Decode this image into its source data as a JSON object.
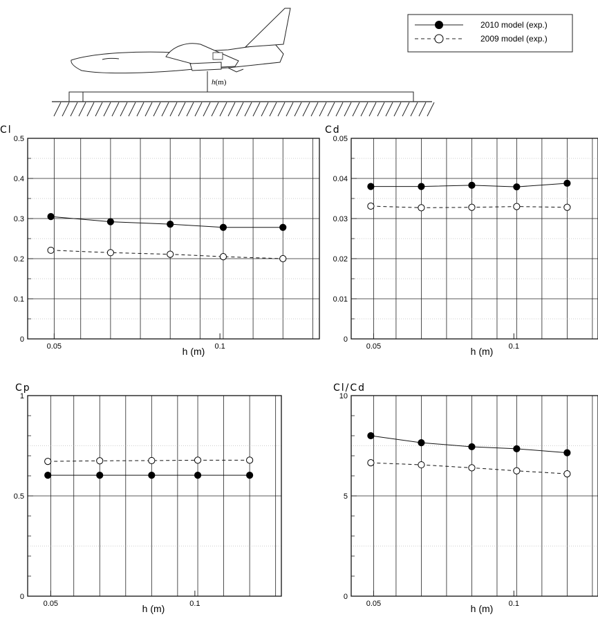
{
  "legend": {
    "items": [
      {
        "label": "2010 model (exp.)",
        "marker": "filled",
        "line": "solid"
      },
      {
        "label": "2009 model (exp.)",
        "marker": "open",
        "line": "dashed"
      }
    ]
  },
  "diagram": {
    "height_label_italic": "h",
    "height_label_unit": "(m)"
  },
  "chart_data": [
    {
      "type": "line",
      "ylabel": "Cl",
      "xlabel": "h (m)",
      "xlim": [
        0.042,
        0.13
      ],
      "ylim": [
        0,
        0.5
      ],
      "xticks": [
        {
          "value": 0.05,
          "label": "0.05"
        },
        {
          "value": 0.1,
          "label": "0.1"
        }
      ],
      "yticks": [
        {
          "value": 0,
          "label": "0"
        },
        {
          "value": 0.1,
          "label": "0.1"
        },
        {
          "value": 0.2,
          "label": "0.2"
        },
        {
          "value": 0.3,
          "label": "0.3"
        },
        {
          "value": 0.4,
          "label": "0.4"
        },
        {
          "value": 0.5,
          "label": "0.5"
        }
      ],
      "x": [
        0.049,
        0.067,
        0.085,
        0.101,
        0.119
      ],
      "series": [
        {
          "name": "2010 model (exp.)",
          "values": [
            0.305,
            0.292,
            0.286,
            0.278,
            0.278
          ]
        },
        {
          "name": "2009 model (exp.)",
          "values": [
            0.221,
            0.215,
            0.211,
            0.205,
            0.2
          ]
        }
      ]
    },
    {
      "type": "line",
      "ylabel": "Cd",
      "xlabel": "h (m)",
      "xlim": [
        0.042,
        0.13
      ],
      "ylim": [
        0,
        0.05
      ],
      "xticks": [
        {
          "value": 0.05,
          "label": "0.05"
        },
        {
          "value": 0.1,
          "label": "0.1"
        }
      ],
      "yticks": [
        {
          "value": 0,
          "label": "0"
        },
        {
          "value": 0.01,
          "label": "0.01"
        },
        {
          "value": 0.02,
          "label": "0.02"
        },
        {
          "value": 0.03,
          "label": "0.03"
        },
        {
          "value": 0.04,
          "label": "0.04"
        },
        {
          "value": 0.05,
          "label": "0.05"
        }
      ],
      "x": [
        0.049,
        0.067,
        0.085,
        0.101,
        0.119
      ],
      "series": [
        {
          "name": "2010 model (exp.)",
          "values": [
            0.038,
            0.038,
            0.0383,
            0.0379,
            0.0388
          ]
        },
        {
          "name": "2009 model (exp.)",
          "values": [
            0.0331,
            0.0327,
            0.0328,
            0.033,
            0.0328
          ]
        }
      ]
    },
    {
      "type": "line",
      "ylabel": "Cp",
      "xlabel": "h (m)",
      "xlim": [
        0.042,
        0.13
      ],
      "ylim": [
        0,
        1
      ],
      "xticks": [
        {
          "value": 0.05,
          "label": "0.05"
        },
        {
          "value": 0.1,
          "label": "0.1"
        }
      ],
      "yticks": [
        {
          "value": 0,
          "label": "0"
        },
        {
          "value": 0.5,
          "label": "0.5"
        },
        {
          "value": 1,
          "label": "1"
        }
      ],
      "x": [
        0.049,
        0.067,
        0.085,
        0.101,
        0.119
      ],
      "series": [
        {
          "name": "2010 model (exp.)",
          "values": [
            0.603,
            0.603,
            0.603,
            0.603,
            0.603
          ]
        },
        {
          "name": "2009 model (exp.)",
          "values": [
            0.672,
            0.675,
            0.676,
            0.678,
            0.678
          ]
        }
      ]
    },
    {
      "type": "line",
      "ylabel": "Cl/Cd",
      "xlabel": "h (m)",
      "xlim": [
        0.042,
        0.13
      ],
      "ylim": [
        0,
        10
      ],
      "xticks": [
        {
          "value": 0.05,
          "label": "0.05"
        },
        {
          "value": 0.1,
          "label": "0.1"
        }
      ],
      "yticks": [
        {
          "value": 0,
          "label": "0"
        },
        {
          "value": 5,
          "label": "5"
        },
        {
          "value": 10,
          "label": "10"
        }
      ],
      "x": [
        0.049,
        0.067,
        0.085,
        0.101,
        0.119
      ],
      "series": [
        {
          "name": "2010 model (exp.)",
          "values": [
            8.0,
            7.65,
            7.45,
            7.35,
            7.15
          ]
        },
        {
          "name": "2009 model (exp.)",
          "values": [
            6.65,
            6.55,
            6.4,
            6.25,
            6.1
          ]
        }
      ]
    }
  ]
}
